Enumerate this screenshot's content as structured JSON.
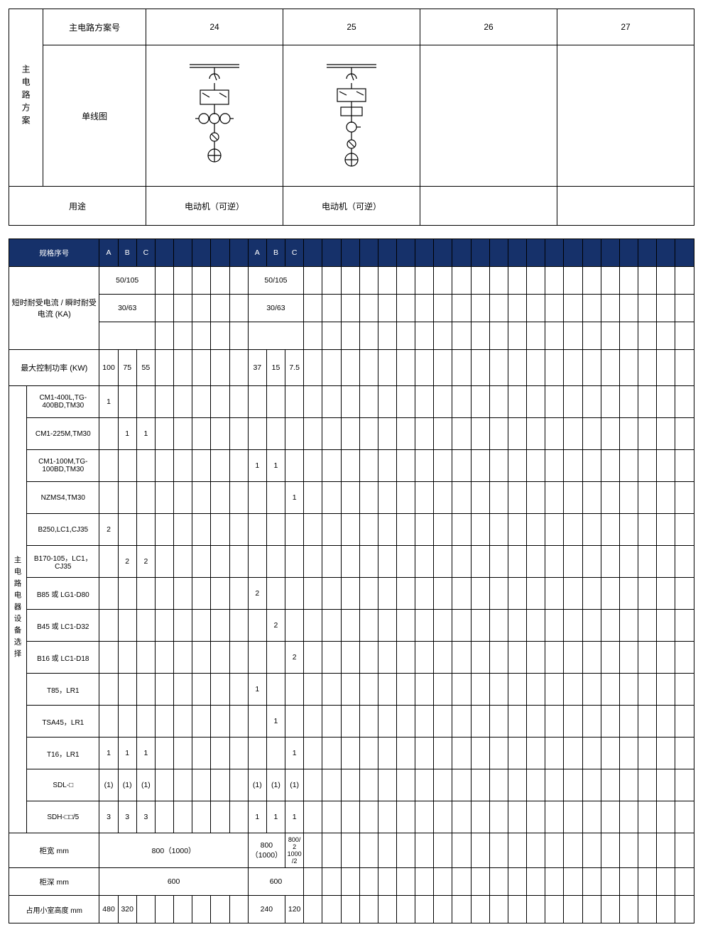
{
  "colors": {
    "header_bg": "#16316a",
    "header_text": "#ffffff",
    "border": "#000000",
    "bg": "#ffffff"
  },
  "top": {
    "side_label": "主电路方案",
    "row_scheme": "主电路方案号",
    "row_diagram": "单线图",
    "row_usage": "用途",
    "cols": [
      "24",
      "25",
      "26",
      "27"
    ],
    "usage": [
      "电动机（可逆）",
      "电动机（可逆）",
      "",
      ""
    ]
  },
  "spec": {
    "header_label": "规格序号",
    "abc": [
      "A",
      "B",
      "C"
    ],
    "withstand_label": "短时耐受电流 / 瞬时耐受电流 (KA)",
    "withstand_r1": [
      "50/105",
      "50/105"
    ],
    "withstand_r2": [
      "30/63",
      "30/63"
    ],
    "max_power_label": "最大控制功率 (KW)",
    "max_power": [
      "100",
      "75",
      "55",
      "37",
      "15",
      "7.5"
    ],
    "equip_side": "主电路电器设备选择",
    "equip": [
      {
        "name": "CM1-400L,TG-400BD,TM30",
        "v": [
          "1",
          "",
          "",
          "",
          "",
          ""
        ]
      },
      {
        "name": "CM1-225M,TM30",
        "v": [
          "",
          "1",
          "1",
          "",
          "",
          ""
        ]
      },
      {
        "name": "CM1-100M,TG-100BD,TM30",
        "v": [
          "",
          "",
          "",
          "1",
          "1",
          ""
        ]
      },
      {
        "name": "NZMS4,TM30",
        "v": [
          "",
          "",
          "",
          "",
          "",
          "1"
        ]
      },
      {
        "name": "B250,LC1,CJ35",
        "v": [
          "2",
          "",
          "",
          "",
          "",
          ""
        ]
      },
      {
        "name": "B170-105，LC1，CJ35",
        "v": [
          "",
          "2",
          "2",
          "",
          "",
          ""
        ]
      },
      {
        "name": "B85 或 LG1-D80",
        "v": [
          "",
          "",
          "",
          "2",
          "",
          ""
        ]
      },
      {
        "name": "B45 或 LC1-D32",
        "v": [
          "",
          "",
          "",
          "",
          "2",
          ""
        ]
      },
      {
        "name": "B16 或 LC1-D18",
        "v": [
          "",
          "",
          "",
          "",
          "",
          "2"
        ]
      },
      {
        "name": "T85，LR1",
        "v": [
          "",
          "",
          "",
          "1",
          "",
          ""
        ]
      },
      {
        "name": "TSA45，LR1",
        "v": [
          "",
          "",
          "",
          "",
          "1",
          ""
        ]
      },
      {
        "name": "T16，LR1",
        "v": [
          "1",
          "1",
          "1",
          "",
          "",
          "1"
        ]
      },
      {
        "name": "SDL-□",
        "v": [
          "(1)",
          "(1)",
          "(1)",
          "(1)",
          "(1)",
          "(1)"
        ]
      },
      {
        "name": "SDH-□□/5",
        "v": [
          "3",
          "3",
          "3",
          "1",
          "1",
          "1"
        ]
      }
    ],
    "width_label": "柜宽 mm",
    "width": [
      "800（1000）",
      "800（1000）",
      "800/2 1000/2"
    ],
    "depth_label": "柜深 mm",
    "depth": [
      "600",
      "600"
    ],
    "height_label": "占用小室高度 mm",
    "height": [
      "480",
      "320",
      "",
      "240",
      "",
      "120"
    ]
  }
}
